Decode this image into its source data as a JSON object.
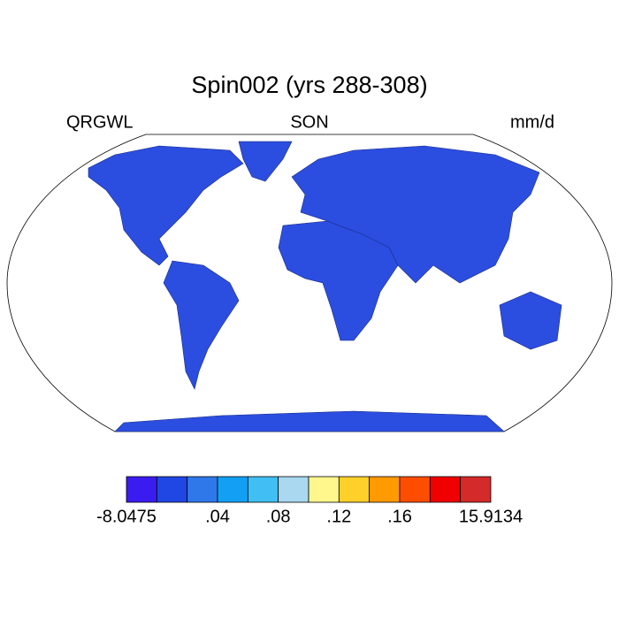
{
  "title": "Spin002 (yrs 288-308)",
  "left_string": "QRGWL",
  "center_string": "SON",
  "right_string": "mm/d",
  "colorbar": {
    "colors": [
      "#3b1cf0",
      "#2046e4",
      "#2f78ea",
      "#12a0f5",
      "#40bff5",
      "#a9d8f0",
      "#fff68c",
      "#ffd02a",
      "#ff9a00",
      "#ff4d00",
      "#f00000",
      "#d42a2a"
    ],
    "edges": [
      -8.0475,
      null,
      null,
      {
        "value": 0.04,
        "label": ".04"
      },
      null,
      {
        "value": 0.08,
        "label": ".08"
      },
      null,
      {
        "value": 0.12,
        "label": ".12"
      },
      null,
      {
        "value": 0.16,
        "label": ".16"
      },
      null,
      null,
      15.9134
    ]
  }
}
